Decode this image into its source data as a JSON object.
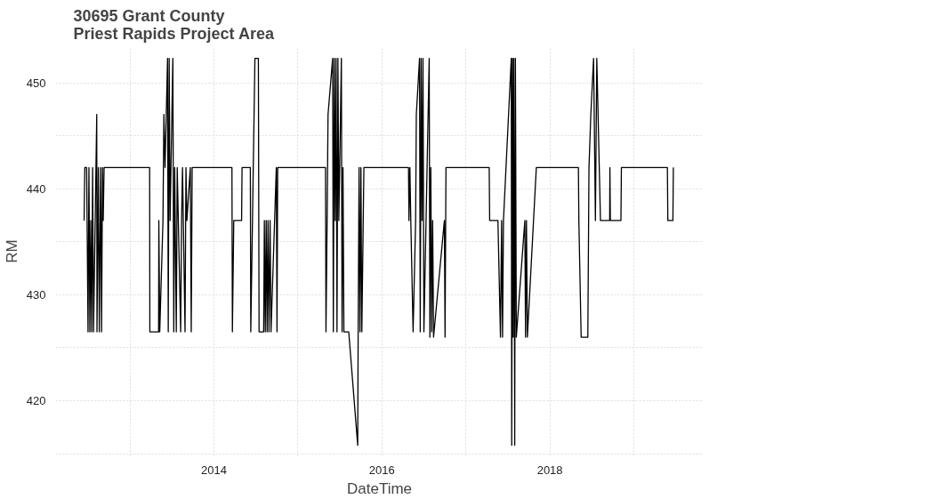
{
  "chart_data": {
    "type": "line",
    "title": "30695 Grant County\nPriest Rapids Project Area",
    "xlabel": "DateTime",
    "ylabel": "RM",
    "xlim": [
      "2012-02-12",
      "2019-10-30"
    ],
    "ylim": [
      414.8,
      453.4
    ],
    "xticks": [
      {
        "value": "2013-01-01",
        "label": null
      },
      {
        "value": "2014-01-01",
        "label": "2014"
      },
      {
        "value": "2015-01-01",
        "label": null
      },
      {
        "value": "2016-01-01",
        "label": "2016"
      },
      {
        "value": "2017-01-01",
        "label": null
      },
      {
        "value": "2018-01-01",
        "label": "2018"
      },
      {
        "value": "2019-01-01",
        "label": null
      }
    ],
    "yticks": [
      {
        "value": 415,
        "label": null
      },
      420,
      {
        "value": 425,
        "label": null
      },
      430,
      {
        "value": 435,
        "label": null
      },
      440,
      {
        "value": 445,
        "label": null
      },
      450
    ],
    "grid": true,
    "line_style": "solid",
    "series": [
      {
        "color": "#000000",
        "x": [
          "2012-06-15",
          "2012-06-18",
          "2012-06-26",
          "2012-06-28",
          "2012-07-02",
          "2012-07-06",
          "2012-07-10",
          "2012-07-14",
          "2012-07-18",
          "2012-07-22",
          "2012-07-26",
          "2012-08-09",
          "2012-08-10",
          "2012-08-16",
          "2012-08-20",
          "2012-08-26",
          "2012-08-30",
          "2012-09-03",
          "2012-09-06",
          "2012-09-10",
          "2013-03-27",
          "2013-03-28",
          "2013-05-05",
          "2013-05-06",
          "2013-05-10",
          "2013-05-24",
          "2013-05-28",
          "2013-06-02",
          "2013-06-13",
          "2013-06-16",
          "2013-06-20",
          "2013-06-24",
          "2013-07-06",
          "2013-07-10",
          "2013-07-14",
          "2013-07-21",
          "2013-07-25",
          "2013-08-09",
          "2013-08-13",
          "2013-08-17",
          "2013-08-28",
          "2013-09-01",
          "2013-09-05",
          "2013-09-20",
          "2013-09-24",
          "2013-09-28",
          "2014-03-20",
          "2014-03-22",
          "2014-03-28",
          "2014-05-01",
          "2014-05-03",
          "2014-06-08",
          "2014-06-10",
          "2014-06-28",
          "2014-07-13",
          "2014-07-16",
          "2014-08-05",
          "2014-08-08",
          "2014-08-12",
          "2014-08-16",
          "2014-08-20",
          "2014-08-24",
          "2014-08-28",
          "2014-09-02",
          "2014-09-06",
          "2014-09-29",
          "2014-10-02",
          "2014-10-05",
          "2015-05-01",
          "2015-05-03",
          "2015-05-08",
          "2015-05-12",
          "2015-06-01",
          "2015-06-04",
          "2015-06-08",
          "2015-06-12",
          "2015-06-16",
          "2015-06-20",
          "2015-06-24",
          "2015-06-28",
          "2015-07-09",
          "2015-07-12",
          "2015-07-16",
          "2015-07-20",
          "2015-08-10",
          "2015-09-18",
          "2015-09-20",
          "2015-09-24",
          "2015-09-28",
          "2015-10-02",
          "2015-10-06",
          "2015-10-15",
          "2016-04-26",
          "2016-04-28",
          "2016-05-02",
          "2016-05-06",
          "2016-05-16",
          "2016-05-27",
          "2016-05-30",
          "2016-06-13",
          "2016-06-16",
          "2016-06-20",
          "2016-06-24",
          "2016-06-28",
          "2016-07-02",
          "2016-07-25",
          "2016-07-28",
          "2016-08-01",
          "2016-08-05",
          "2016-08-09",
          "2016-08-13",
          "2016-09-29",
          "2016-10-02",
          "2016-10-06",
          "2017-04-12",
          "2017-04-14",
          "2017-05-20",
          "2017-05-31",
          "2017-06-05",
          "2017-06-09",
          "2017-06-13",
          "2017-07-17",
          "2017-07-19",
          "2017-07-22",
          "2017-07-25",
          "2017-07-28",
          "2017-08-01",
          "2017-08-04",
          "2017-08-08",
          "2017-09-14",
          "2017-09-17",
          "2017-09-21",
          "2017-09-25",
          "2017-11-03",
          "2018-05-05",
          "2018-05-07",
          "2018-05-17",
          "2018-06-15",
          "2018-06-20",
          "2018-06-28",
          "2018-07-10",
          "2018-07-18",
          "2018-07-24",
          "2018-08-09",
          "2018-09-18",
          "2018-09-19",
          "2018-09-21",
          "2018-11-06",
          "2018-11-08",
          "2019-05-27",
          "2019-05-29",
          "2019-06-20",
          "2019-06-22"
        ],
        "values": [
          437,
          442,
          442,
          437,
          426.5,
          442,
          426.5,
          437,
          426.5,
          442,
          426.5,
          447,
          426.5,
          442,
          426.5,
          442,
          426.5,
          442,
          437,
          442,
          442,
          426.5,
          426.5,
          437,
          426.5,
          437,
          447,
          442,
          452.3,
          426.5,
          452.3,
          437,
          452.3,
          426.5,
          442,
          426.5,
          442,
          426.5,
          437,
          442,
          426.5,
          442,
          437,
          442,
          426.5,
          442,
          442,
          426.5,
          437,
          437,
          442,
          442,
          426.5,
          452.3,
          452.3,
          426.5,
          426.5,
          437,
          426.5,
          437,
          426.5,
          437,
          426.5,
          437,
          426.5,
          442,
          426.5,
          442,
          442,
          426.5,
          437,
          447,
          452.3,
          426.5,
          452.3,
          437,
          452.3,
          426.5,
          452.3,
          437,
          452.3,
          426.5,
          442,
          426.5,
          426.5,
          415.8,
          426.5,
          442,
          426.5,
          442,
          426.5,
          442,
          442,
          437,
          442,
          437,
          426.5,
          437,
          447,
          452.3,
          426.5,
          452.3,
          437,
          452.3,
          426.5,
          452.3,
          426,
          442,
          426.5,
          437,
          426,
          437,
          426,
          442,
          442,
          437,
          437,
          426,
          437,
          426,
          437,
          452.3,
          415.8,
          452.3,
          426,
          452.3,
          415.8,
          452.3,
          426,
          437,
          426,
          437,
          426,
          442,
          442,
          437,
          426,
          426,
          442,
          447,
          452.3,
          437,
          452.3,
          437,
          437,
          442,
          437,
          437,
          442,
          442,
          437,
          437,
          442
        ]
      }
    ]
  }
}
